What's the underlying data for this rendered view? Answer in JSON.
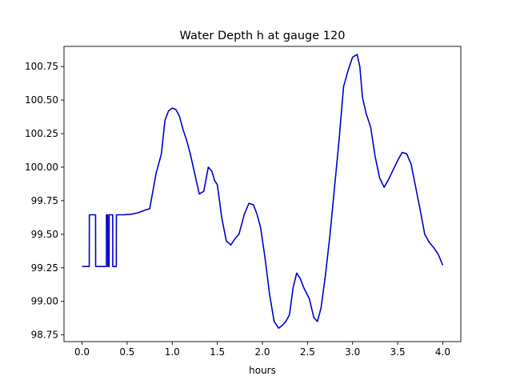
{
  "chart_data": {
    "type": "line",
    "title": "Water Depth h at gauge 120",
    "xlabel": "hours",
    "ylabel": "",
    "xlim": [
      -0.2,
      4.2
    ],
    "ylim": [
      98.7,
      100.9
    ],
    "xticks": [
      0.0,
      0.5,
      1.0,
      1.5,
      2.0,
      2.5,
      3.0,
      3.5,
      4.0
    ],
    "xtick_labels": [
      "0.0",
      "0.5",
      "1.0",
      "1.5",
      "2.0",
      "2.5",
      "3.0",
      "3.5",
      "4.0"
    ],
    "yticks": [
      98.75,
      99.0,
      99.25,
      99.5,
      99.75,
      100.0,
      100.25,
      100.5,
      100.75
    ],
    "ytick_labels": [
      "98.75",
      "99.00",
      "99.25",
      "99.50",
      "99.75",
      "100.00",
      "100.25",
      "100.50",
      "100.75"
    ],
    "grid": false,
    "series": [
      {
        "color": "#0000cc",
        "x": [
          0.0,
          0.08,
          0.081,
          0.15,
          0.151,
          0.27,
          0.271,
          0.285,
          0.286,
          0.3,
          0.301,
          0.34,
          0.341,
          0.38,
          0.381,
          0.46,
          0.461,
          0.55,
          0.62,
          0.7,
          0.75,
          0.78,
          0.82,
          0.88,
          0.92,
          0.96,
          1.0,
          1.04,
          1.08,
          1.12,
          1.16,
          1.2,
          1.25,
          1.3,
          1.35,
          1.4,
          1.44,
          1.47,
          1.5,
          1.55,
          1.6,
          1.65,
          1.7,
          1.74,
          1.8,
          1.85,
          1.9,
          1.94,
          1.98,
          2.03,
          2.08,
          2.13,
          2.18,
          2.22,
          2.26,
          2.3,
          2.34,
          2.38,
          2.42,
          2.46,
          2.52,
          2.57,
          2.61,
          2.65,
          2.7,
          2.75,
          2.8,
          2.85,
          2.9,
          2.95,
          3.0,
          3.05,
          3.08,
          3.11,
          3.15,
          3.2,
          3.25,
          3.3,
          3.35,
          3.4,
          3.45,
          3.5,
          3.55,
          3.6,
          3.65,
          3.7,
          3.75,
          3.8,
          3.85,
          3.9,
          3.95,
          4.0
        ],
        "y": [
          99.26,
          99.26,
          99.645,
          99.645,
          99.26,
          99.26,
          99.645,
          99.645,
          99.26,
          99.26,
          99.645,
          99.645,
          99.26,
          99.26,
          99.645,
          99.645,
          99.645,
          99.65,
          99.66,
          99.68,
          99.69,
          99.8,
          99.95,
          100.1,
          100.35,
          100.42,
          100.44,
          100.43,
          100.38,
          100.28,
          100.2,
          100.1,
          99.95,
          99.8,
          99.82,
          100.0,
          99.97,
          99.9,
          99.87,
          99.62,
          99.45,
          99.42,
          99.47,
          99.5,
          99.65,
          99.73,
          99.72,
          99.65,
          99.55,
          99.32,
          99.05,
          98.85,
          98.8,
          98.82,
          98.85,
          98.9,
          99.1,
          99.21,
          99.17,
          99.1,
          99.02,
          98.88,
          98.85,
          98.95,
          99.2,
          99.5,
          99.85,
          100.2,
          100.6,
          100.72,
          100.82,
          100.84,
          100.75,
          100.52,
          100.4,
          100.3,
          100.08,
          99.92,
          99.85,
          99.91,
          99.98,
          100.05,
          100.11,
          100.1,
          100.02,
          99.85,
          99.68,
          99.5,
          99.44,
          99.4,
          99.35,
          99.27
        ]
      }
    ]
  }
}
